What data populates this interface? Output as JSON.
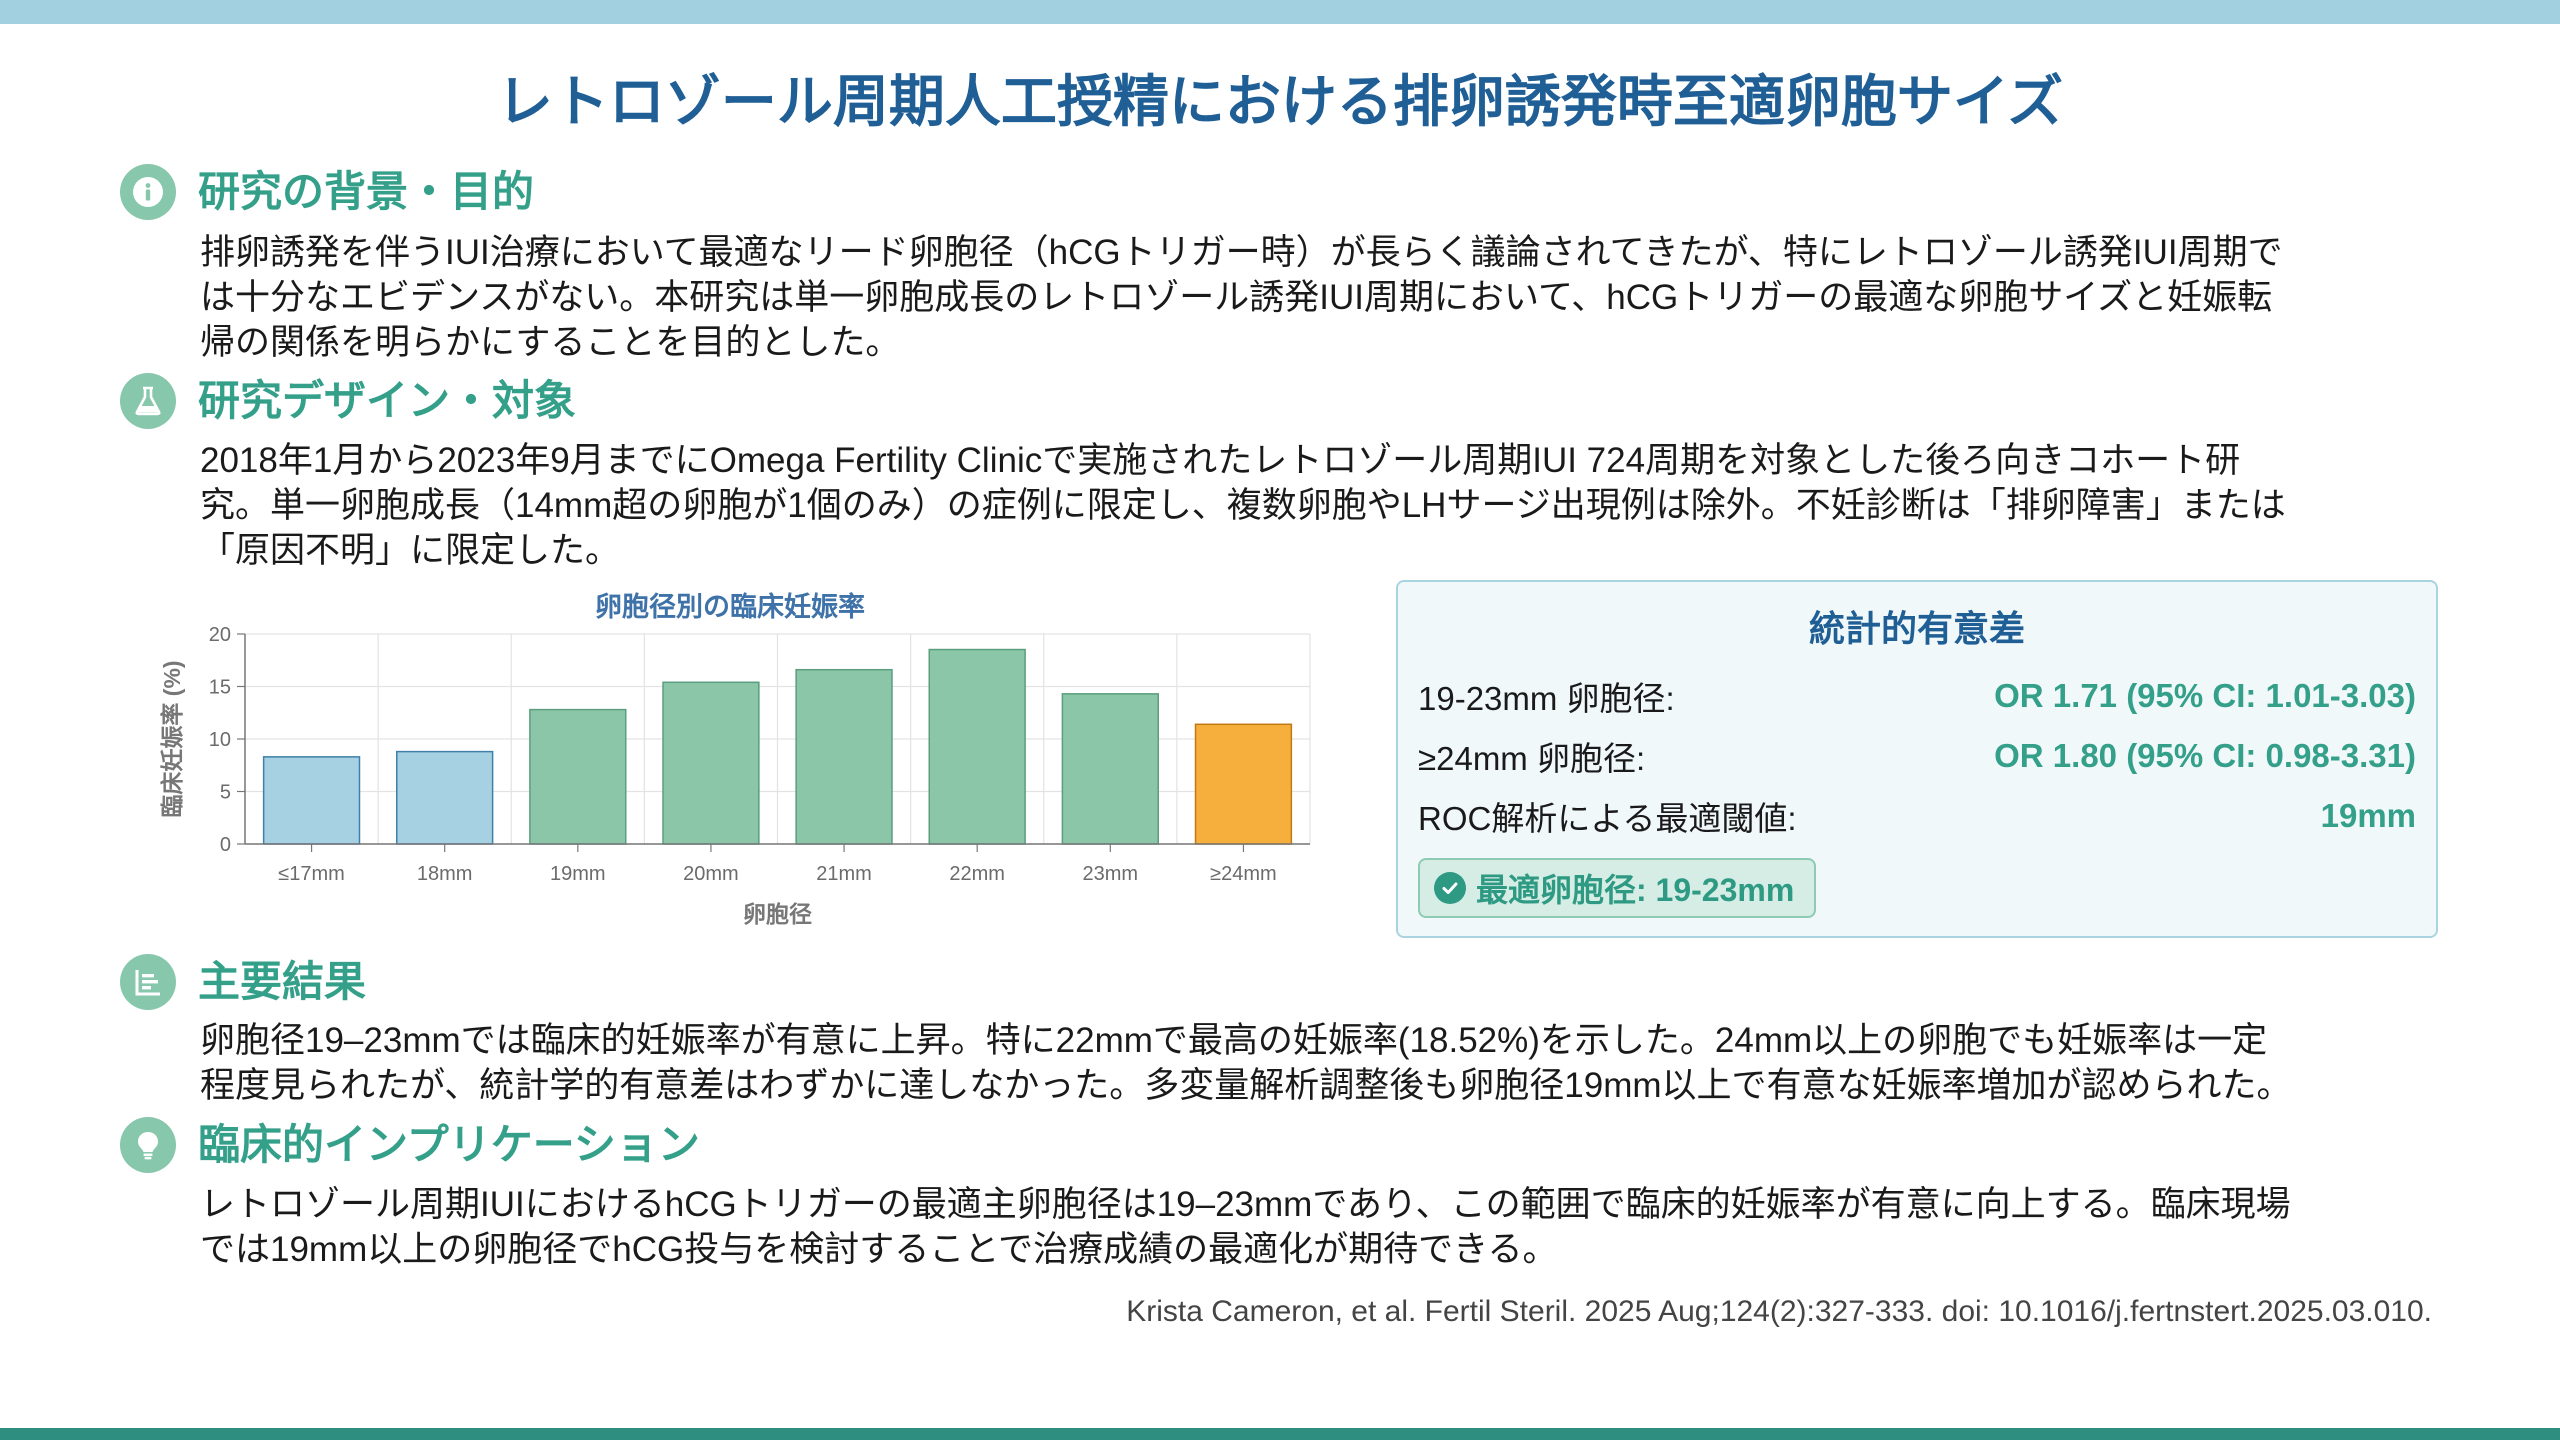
{
  "title": "レトロゾール周期人工授精における排卵誘発時至適卵胞サイズ",
  "sections": {
    "background": {
      "icon": "info-icon",
      "heading": "研究の背景・目的",
      "lines": [
        "排卵誘発を伴うIUI治療において最適なリード卵胞径（hCGトリガー時）が長らく議論されてきたが、特にレトロゾール誘発IUI周期で",
        "は十分なエビデンスがない。本研究は単一卵胞成長のレトロゾール誘発IUI周期において、hCGトリガーの最適な卵胞サイズと妊娠転",
        "帰の関係を明らかにすることを目的とした。"
      ]
    },
    "design": {
      "icon": "flask-icon",
      "heading": "研究デザイン・対象",
      "lines": [
        "2018年1月から2023年9月までにOmega Fertility Clinicで実施されたレトロゾール周期IUI 724周期を対象とした後ろ向きコホート研",
        "究。単一卵胞成長（14mm超の卵胞が1個のみ）の症例に限定し、複数卵胞やLHサージ出現例は除外。不妊診断は「排卵障害」または",
        "「原因不明」に限定した。"
      ]
    },
    "results": {
      "icon": "chart-icon",
      "heading": "主要結果",
      "lines": [
        "卵胞径19–23mmでは臨床的妊娠率が有意に上昇。特に22mmで最高の妊娠率(18.52%)を示した。24mm以上の卵胞でも妊娠率は一定",
        "程度見られたが、統計学的有意差はわずかに達しなかった。多変量解析調整後も卵胞径19mm以上で有意な妊娠率増加が認められた。"
      ]
    },
    "implication": {
      "icon": "lightbulb-icon",
      "heading": "臨床的インプリケーション",
      "lines": [
        "レトロゾール周期IUIにおけるhCGトリガーの最適主卵胞径は19–23mmであり、この範囲で臨床的妊娠率が有意に向上する。臨床現場",
        "では19mm以上の卵胞径でhCG投与を検討することで治療成績の最適化が期待できる。"
      ]
    }
  },
  "stats": {
    "title": "統計的有意差",
    "rows": [
      {
        "label": "19-23mm 卵胞径:",
        "value": "OR 1.71 (95% CI: 1.01-3.03)"
      },
      {
        "label": "≥24mm 卵胞径:",
        "value": "OR 1.80 (95% CI: 0.98-3.31)"
      },
      {
        "label": "ROC解析による最適閾値:",
        "value": "19mm"
      }
    ],
    "badge": "最適卵胞径: 19-23mm",
    "badge_icon": "check-circle-icon"
  },
  "citation": "Krista Cameron, et al. Fertil Steril. 2025 Aug;124(2):327-333.  doi: 10.1016/j.fertnstert.2025.03.010.",
  "chart_data": {
    "type": "bar",
    "title": "卵胞径別の臨床妊娠率",
    "xlabel": "卵胞径",
    "ylabel": "臨床妊娠率 (%)",
    "categories": [
      "≤17mm",
      "18mm",
      "19mm",
      "20mm",
      "21mm",
      "22mm",
      "23mm",
      "≥24mm"
    ],
    "values": [
      8.3,
      8.8,
      12.8,
      15.4,
      16.6,
      18.52,
      14.3,
      11.4
    ],
    "ylim": [
      0,
      20
    ],
    "yticks": [
      0,
      5,
      10,
      15,
      20
    ],
    "grid": true,
    "colors": {
      "≤17mm": "#a6d1e3",
      "18mm": "#a6d1e3",
      "19mm": "#8bc6a8",
      "20mm": "#8bc6a8",
      "21mm": "#8bc6a8",
      "22mm": "#8bc6a8",
      "23mm": "#8bc6a8",
      "≥24mm": "#f6ae3d"
    }
  },
  "colors": {
    "accent_blue": "#1f5f96",
    "accent_green": "#34a08a",
    "top_bar": "#a3d0e1",
    "bottom_bar": "#2e8e80"
  }
}
